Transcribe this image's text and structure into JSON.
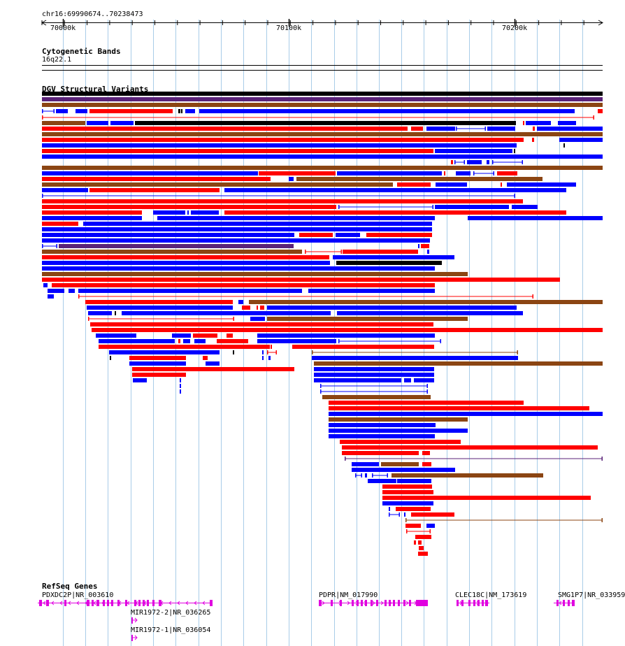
{
  "location": "chr16:69990674..70238473",
  "ruler_ticks": [
    {
      "label": "70000k",
      "pos": 70000000
    },
    {
      "label": "70100k",
      "pos": 70100000
    },
    {
      "label": "70200k",
      "pos": 70200000
    }
  ],
  "tracks": {
    "cytoband": {
      "title": "Cytogenetic Bands",
      "band": "16q22.1"
    },
    "dgv": {
      "title": "DGV Structural Variants"
    },
    "refseq": {
      "title": "RefSeq Genes"
    }
  },
  "genes": [
    {
      "label": "PDXDC2P|NR_003610",
      "color": "#e000e0"
    },
    {
      "label": "MIR1972-2|NR_036265",
      "color": "#e000e0"
    },
    {
      "label": "MIR1972-1|NR_036054",
      "color": "#e000e0"
    },
    {
      "label": "PDPR|NM_017990",
      "color": "#e000e0"
    },
    {
      "label": "CLEC18C|NM_173619",
      "color": "#e000e0"
    },
    {
      "label": "SMG1P7|NR_033959",
      "color": "#e000e0"
    }
  ],
  "colors": {
    "gain": "#ff0000",
    "loss": "#0000ff",
    "both": "#8b4513",
    "complex": "#000000",
    "inversion": "#5a2278",
    "gene": "#e000e0",
    "grid": "#a8cce8"
  }
}
